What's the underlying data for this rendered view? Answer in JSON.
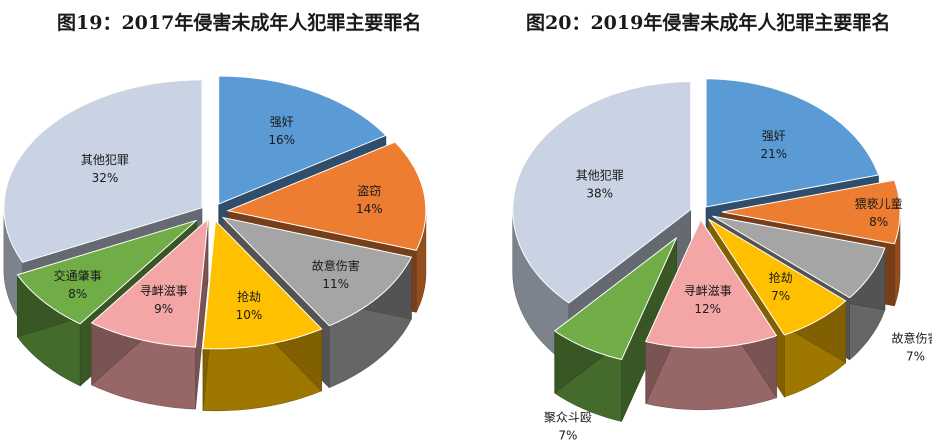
{
  "chart_data": [
    {
      "type": "pie",
      "title": "图19：2017年侵害未成年人犯罪主要罪名",
      "categories": [
        "强奸",
        "盗窃",
        "故意伤害",
        "抢劫",
        "寻衅滋事",
        "交通肇事",
        "其他犯罪"
      ],
      "values": [
        16,
        14,
        11,
        10,
        9,
        8,
        32
      ],
      "labels": [
        "16%",
        "14%",
        "11%",
        "10%",
        "9%",
        "8%",
        "32%"
      ],
      "colors": [
        "#5b9bd5",
        "#ed7d31",
        "#a5a5a5",
        "#ffc000",
        "#f4a6a6",
        "#70ad47",
        "#c9d3e3"
      ]
    },
    {
      "type": "pie",
      "title": "图20：2019年侵害未成年人犯罪主要罪名",
      "categories": [
        "强奸",
        "猥亵儿童",
        "故意伤害",
        "抢劫",
        "寻衅滋事",
        "聚众斗殴",
        "其他犯罪"
      ],
      "values": [
        21,
        8,
        7,
        7,
        12,
        7,
        38
      ],
      "labels": [
        "21%",
        "8%",
        "7%",
        "7%",
        "12%",
        "7%",
        "38%"
      ],
      "colors": [
        "#5b9bd5",
        "#ed7d31",
        "#a5a5a5",
        "#ffc000",
        "#f4a6a6",
        "#70ad47",
        "#c9d3e3"
      ]
    }
  ]
}
